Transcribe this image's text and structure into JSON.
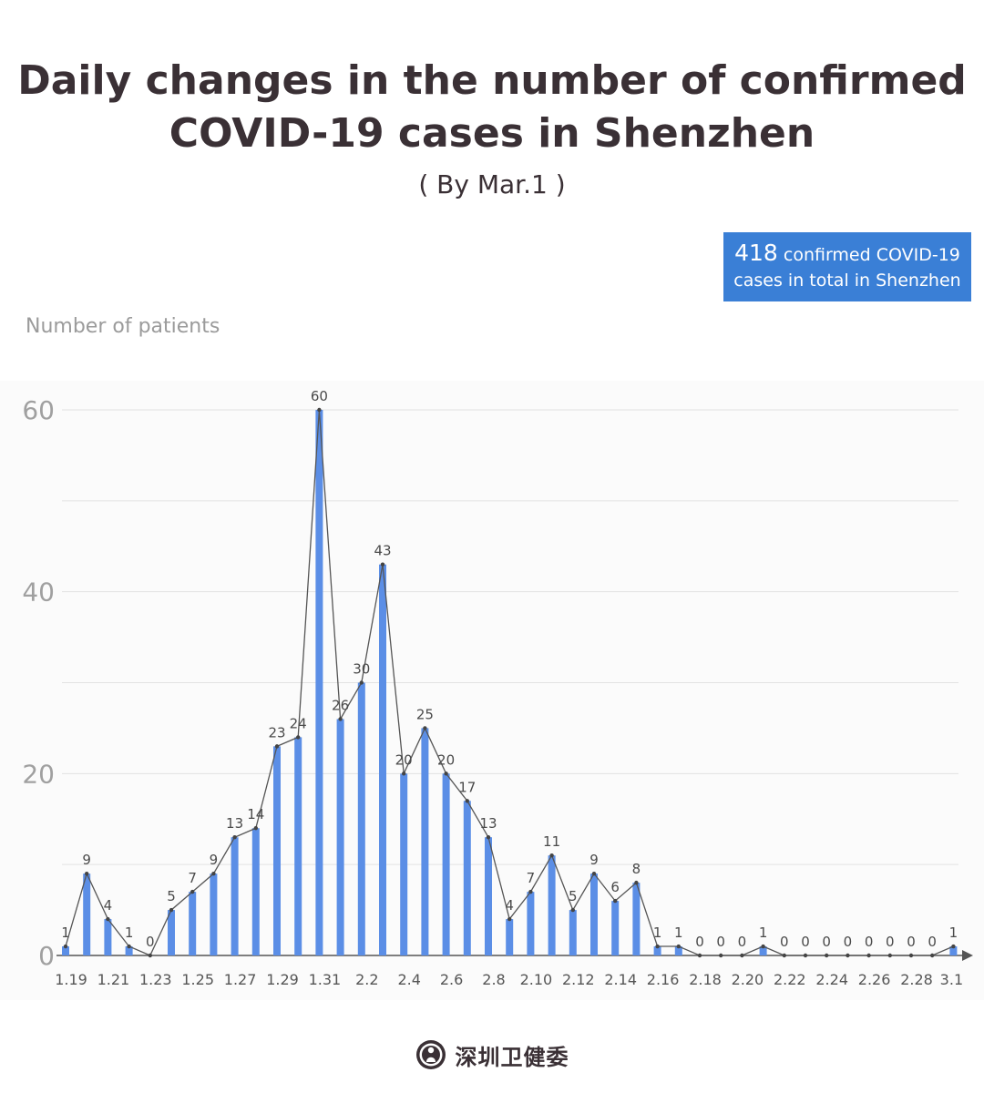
{
  "header": {
    "title_line1": "Daily changes in the number of  confirmed",
    "title_line2": "COVID-19 cases in Shenzhen",
    "subtitle": "( By Mar.1 )"
  },
  "total_box": {
    "number": "418",
    "text_line1": " confirmed COVID-19",
    "text_line2": "cases in total in Shenzhen"
  },
  "footer": {
    "org_name": "深圳卫健委",
    "logo_icon": "health-commission-logo-icon"
  },
  "colors": {
    "bar": "#5b8ee6",
    "line": "#555555",
    "box": "#3a7fd6",
    "grid": "#e2e2e2"
  },
  "chart_data": {
    "type": "bar",
    "title": "Daily changes in the number of  confirmed COVID-19 cases in Shenzhen",
    "subtitle": "( By Mar.1 )",
    "xlabel": "",
    "ylabel": "Number of patients",
    "ylim": [
      0,
      60
    ],
    "yticks": [
      "0",
      "20",
      "40",
      "60"
    ],
    "grid": true,
    "overlay_line": true,
    "categories": [
      "1.19",
      "1.20",
      "1.21",
      "1.22",
      "1.23",
      "1.24",
      "1.25",
      "1.26",
      "1.27",
      "1.28",
      "1.29",
      "1.30",
      "1.31",
      "2.1",
      "2.2",
      "2.3",
      "2.4",
      "2.5",
      "2.6",
      "2.7",
      "2.8",
      "2.9",
      "2.10",
      "2.11",
      "2.12",
      "2.13",
      "2.14",
      "2.15",
      "2.16",
      "2.17",
      "2.18",
      "2.19",
      "2.20",
      "2.21",
      "2.22",
      "2.23",
      "2.24",
      "2.25",
      "2.26",
      "2.27",
      "2.28",
      "2.29",
      "3.1"
    ],
    "xtick_labels": [
      "1.19",
      "1.21",
      "1.23",
      "1.25",
      "1.27",
      "1.29",
      "1.31",
      "2.2",
      "2.4",
      "2.6",
      "2.8",
      "2.10",
      "2.12",
      "2.14",
      "2.16",
      "2.18",
      "2.20",
      "2.22",
      "2.24",
      "2.26",
      "2.28",
      "3.1"
    ],
    "values": [
      1,
      9,
      4,
      1,
      0,
      5,
      7,
      9,
      13,
      14,
      23,
      24,
      60,
      26,
      30,
      43,
      20,
      25,
      20,
      17,
      13,
      4,
      7,
      11,
      5,
      9,
      6,
      8,
      1,
      1,
      0,
      0,
      0,
      1,
      0,
      0,
      0,
      0,
      0,
      0,
      0,
      0,
      1
    ]
  }
}
